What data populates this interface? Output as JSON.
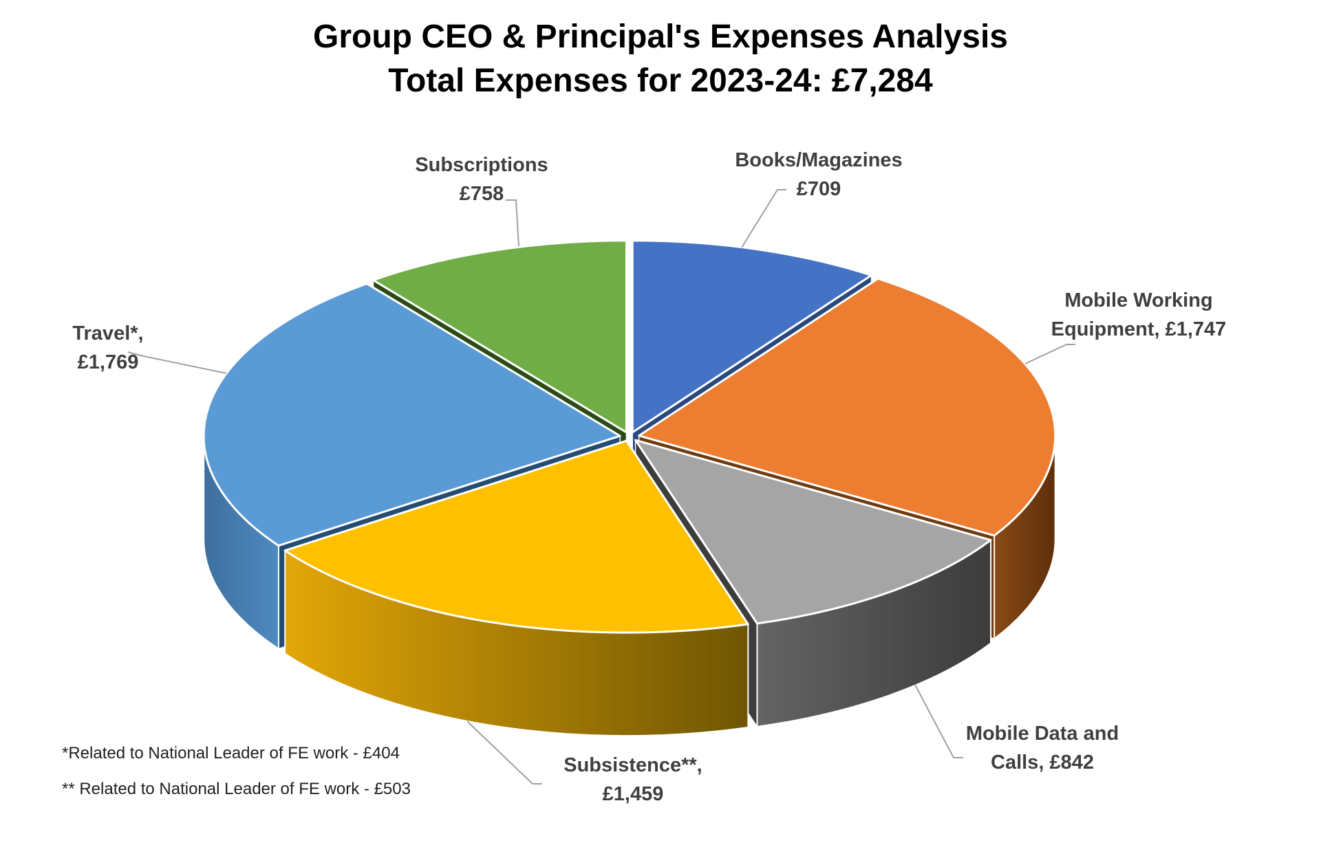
{
  "title": {
    "line1": "Group CEO & Principal's Expenses Analysis",
    "line2": "Total Expenses for 2023-24: £7,284"
  },
  "footnotes": {
    "note1": "*Related to National Leader of FE work - £404",
    "note2": "** Related to National Leader of FE work - £503"
  },
  "chart_data": {
    "type": "pie",
    "style": "3d-exploded",
    "title": "Group CEO & Principal's Expenses Analysis",
    "subtitle": "Total Expenses for 2023-24: £7,284",
    "total": 7284,
    "total_display": "£7,284",
    "currency": "£",
    "start_angle_deg": 0,
    "direction": "clockwise",
    "legend": "none",
    "background": "#ffffff",
    "leader_line_color": "#A0A0A0",
    "slices": [
      {
        "name": "Books/Magazines",
        "value": 709,
        "display": "£709",
        "callout_line1": "Books/Magazines",
        "callout_line2": "£709",
        "color": "#4472C4",
        "side_wall_color": "#29497C",
        "outer_wall_gradient": [
          "#335A9E",
          "#24406E"
        ]
      },
      {
        "name": "Mobile Working Equipment",
        "value": 1747,
        "display": "£1,747",
        "callout_line1": "Mobile Working",
        "callout_line2": "Equipment, £1,747",
        "color": "#ED7D31",
        "side_wall_color": "#6E3A10",
        "outer_wall_gradient": [
          "#8A4A16",
          "#5E2E0A"
        ]
      },
      {
        "name": "Mobile Data and Calls",
        "value": 842,
        "display": "£842",
        "callout_line1": "Mobile Data and",
        "callout_line2": "Calls, £842",
        "color": "#A5A5A5",
        "side_wall_color": "#3D3D3D",
        "outer_wall_gradient": [
          "#646464",
          "#3C3C3C"
        ]
      },
      {
        "name": "Subsistence",
        "value": 1459,
        "display": "£1,459",
        "callout_line1": "Subsistence**,",
        "callout_line2": "£1,459",
        "color": "#FFC000",
        "side_wall_color": "#7A5B03",
        "outer_wall_gradient": [
          "#E2A607",
          "#6F5603"
        ]
      },
      {
        "name": "Travel",
        "value": 1769,
        "display": "£1,769",
        "callout_line1": "Travel*,",
        "callout_line2": "£1,769",
        "color": "#5B9BD5",
        "side_wall_color": "#254C72",
        "outer_wall_gradient": [
          "#3E6F9E",
          "#4E8AC0"
        ]
      },
      {
        "name": "Subscriptions",
        "value": 758,
        "display": "£758",
        "callout_line1": "Subscriptions",
        "callout_line2": "£758",
        "color": "#70AD47",
        "side_wall_color": "#2C4A16",
        "outer_wall_gradient": [
          "#4E7A2F",
          "#3B5C22"
        ]
      }
    ]
  }
}
